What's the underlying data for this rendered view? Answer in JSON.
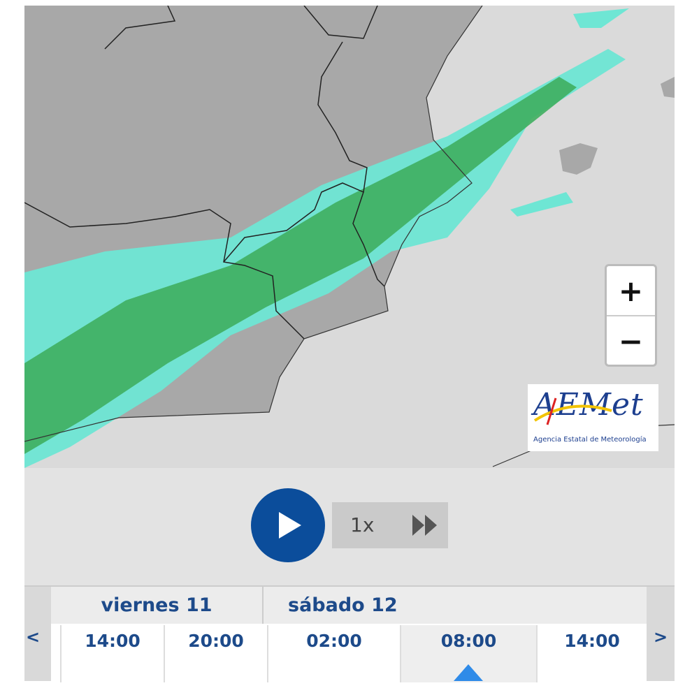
{
  "map": {
    "zoom_in": "+",
    "zoom_out": "−",
    "logo": {
      "title": "AEMet",
      "subtitle": "Agencia Estatal de Meteorología"
    }
  },
  "player": {
    "speed": "1x"
  },
  "timeline": {
    "prev": "<",
    "next": ">",
    "days": [
      "viernes 11",
      "sábado 12"
    ],
    "hours": [
      "14:00",
      "20:00",
      "02:00",
      "08:00",
      "14:00"
    ]
  }
}
